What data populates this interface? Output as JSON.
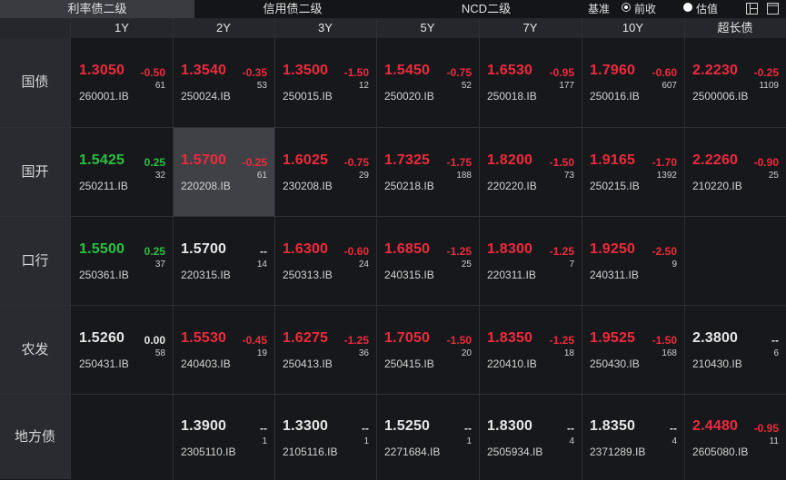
{
  "tabs": [
    "利率债二级",
    "信用债二级",
    "NCD二级"
  ],
  "controls": {
    "base_label": "基准",
    "option1": "前收",
    "option2": "估值"
  },
  "icons": [
    "layout-icon",
    "maximize-icon"
  ],
  "columns": [
    "1Y",
    "2Y",
    "3Y",
    "5Y",
    "7Y",
    "10Y",
    "超长债"
  ],
  "rows": [
    {
      "label": "国债",
      "cells": [
        {
          "yield": "1.3050",
          "change": "-0.50",
          "count": "61",
          "code": "260001.IB",
          "dir": "up"
        },
        {
          "yield": "1.3540",
          "change": "-0.35",
          "count": "53",
          "code": "250024.IB",
          "dir": "up"
        },
        {
          "yield": "1.3500",
          "change": "-1.50",
          "count": "12",
          "code": "250015.IB",
          "dir": "up"
        },
        {
          "yield": "1.5450",
          "change": "-0.75",
          "count": "52",
          "code": "250020.IB",
          "dir": "up"
        },
        {
          "yield": "1.6530",
          "change": "-0.95",
          "count": "177",
          "code": "250018.IB",
          "dir": "up"
        },
        {
          "yield": "1.7960",
          "change": "-0.60",
          "count": "607",
          "code": "250016.IB",
          "dir": "up"
        },
        {
          "yield": "2.2230",
          "change": "-0.25",
          "count": "1109",
          "code": "2500006.IB",
          "dir": "up"
        }
      ]
    },
    {
      "label": "国开",
      "cells": [
        {
          "yield": "1.5425",
          "change": "0.25",
          "count": "32",
          "code": "250211.IB",
          "dir": "dn"
        },
        {
          "yield": "1.5700",
          "change": "-0.25",
          "count": "61",
          "code": "220208.IB",
          "dir": "up"
        },
        {
          "yield": "1.6025",
          "change": "-0.75",
          "count": "29",
          "code": "230208.IB",
          "dir": "up"
        },
        {
          "yield": "1.7325",
          "change": "-1.75",
          "count": "188",
          "code": "250218.IB",
          "dir": "up"
        },
        {
          "yield": "1.8200",
          "change": "-1.50",
          "count": "73",
          "code": "220220.IB",
          "dir": "up"
        },
        {
          "yield": "1.9165",
          "change": "-1.70",
          "count": "1392",
          "code": "250215.IB",
          "dir": "up"
        },
        {
          "yield": "2.2260",
          "change": "-0.90",
          "count": "25",
          "code": "210220.IB",
          "dir": "up"
        }
      ]
    },
    {
      "label": "口行",
      "cells": [
        {
          "yield": "1.5500",
          "change": "0.25",
          "count": "37",
          "code": "250361.IB",
          "dir": "dn"
        },
        {
          "yield": "1.5700",
          "change": "--",
          "count": "14",
          "code": "220315.IB",
          "dir": "flat"
        },
        {
          "yield": "1.6300",
          "change": "-0.60",
          "count": "24",
          "code": "250313.IB",
          "dir": "up"
        },
        {
          "yield": "1.6850",
          "change": "-1.25",
          "count": "25",
          "code": "240315.IB",
          "dir": "up"
        },
        {
          "yield": "1.8300",
          "change": "-1.25",
          "count": "7",
          "code": "220311.IB",
          "dir": "up"
        },
        {
          "yield": "1.9250",
          "change": "-2.50",
          "count": "9",
          "code": "240311.IB",
          "dir": "up"
        },
        null
      ]
    },
    {
      "label": "农发",
      "cells": [
        {
          "yield": "1.5260",
          "change": "0.00",
          "count": "58",
          "code": "250431.IB",
          "dir": "flat"
        },
        {
          "yield": "1.5530",
          "change": "-0.45",
          "count": "19",
          "code": "240403.IB",
          "dir": "up"
        },
        {
          "yield": "1.6275",
          "change": "-1.25",
          "count": "36",
          "code": "250413.IB",
          "dir": "up"
        },
        {
          "yield": "1.7050",
          "change": "-1.50",
          "count": "20",
          "code": "250415.IB",
          "dir": "up"
        },
        {
          "yield": "1.8350",
          "change": "-1.25",
          "count": "18",
          "code": "220410.IB",
          "dir": "up"
        },
        {
          "yield": "1.9525",
          "change": "-1.50",
          "count": "168",
          "code": "250430.IB",
          "dir": "up"
        },
        {
          "yield": "2.3800",
          "change": "--",
          "count": "6",
          "code": "210430.IB",
          "dir": "flat"
        }
      ]
    },
    {
      "label": "地方债",
      "cells": [
        null,
        {
          "yield": "1.3900",
          "change": "--",
          "count": "1",
          "code": "2305110.IB",
          "dir": "flat"
        },
        {
          "yield": "1.3300",
          "change": "--",
          "count": "1",
          "code": "2105116.IB",
          "dir": "flat"
        },
        {
          "yield": "1.5250",
          "change": "--",
          "count": "1",
          "code": "2271684.IB",
          "dir": "flat"
        },
        {
          "yield": "1.8300",
          "change": "--",
          "count": "4",
          "code": "2505934.IB",
          "dir": "flat"
        },
        {
          "yield": "1.8350",
          "change": "--",
          "count": "4",
          "code": "2371289.IB",
          "dir": "flat"
        },
        {
          "yield": "2.4480",
          "change": "-0.95",
          "count": "11",
          "code": "2605080.IB",
          "dir": "up"
        }
      ]
    }
  ]
}
